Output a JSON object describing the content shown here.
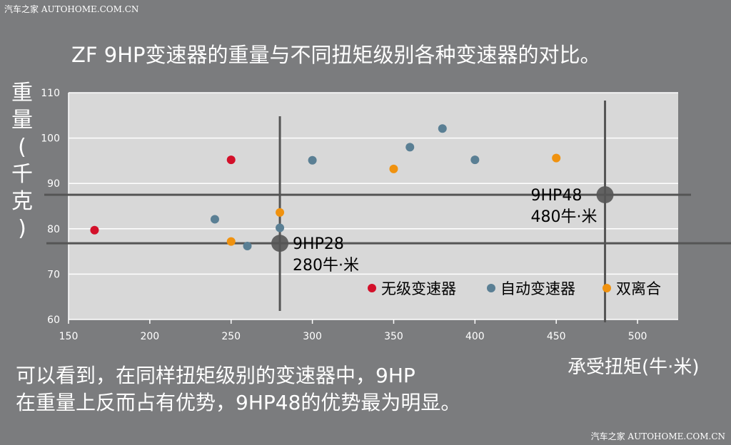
{
  "watermark_top": "汽车之家 AUTOHOME.COM.CN",
  "watermark_bottom": "汽车之家 AUTOHOME.COM.CN",
  "note_lines": [
    "可以看到，在同样扭矩级别的变速器中，9HP",
    "在重量上反而占有优势，9HP48的优势最为明显。"
  ],
  "colors": {
    "background": "#7b7c7e",
    "plot_bg": "#d8d8d8",
    "cvt": "#d3102a",
    "automatic": "#5a7f94",
    "dct": "#f0920f",
    "reference": "#555555"
  },
  "chart_data": {
    "type": "scatter",
    "title": "ZF 9HP变速器的重量与不同扭矩级别各种变速器的对比。",
    "xlabel": "承受扭矩(牛·米)",
    "ylabel_chars": [
      "重",
      "量",
      "(",
      "千",
      "克",
      ")"
    ],
    "xlim": [
      150,
      525
    ],
    "ylim": [
      60,
      110
    ],
    "x_ticks": [
      150,
      200,
      250,
      300,
      350,
      400,
      450,
      500
    ],
    "y_ticks": [
      60,
      70,
      80,
      90,
      100,
      110
    ],
    "grid": true,
    "legend_position": "bottom-right",
    "series": [
      {
        "name": "无级变速器",
        "color": "#d3102a",
        "points": [
          [
            166,
            79.7
          ],
          [
            250,
            95.2
          ]
        ]
      },
      {
        "name": "自动变速器",
        "color": "#5a7f94",
        "points": [
          [
            240,
            82.1
          ],
          [
            260,
            76.2
          ],
          [
            280,
            80.2
          ],
          [
            300,
            95.1
          ],
          [
            360,
            98.0
          ],
          [
            380,
            102.1
          ],
          [
            400,
            95.2
          ]
        ]
      },
      {
        "name": "双离合",
        "color": "#f0920f",
        "points": [
          [
            250,
            77.2
          ],
          [
            280,
            83.6
          ],
          [
            350,
            93.2
          ],
          [
            450,
            95.6
          ]
        ]
      }
    ],
    "highlights": [
      {
        "x": 280,
        "y": 76.8,
        "label_line1": "9HP28",
        "label_line2": "280牛·米"
      },
      {
        "x": 480,
        "y": 87.5,
        "label_line1": "9HP48",
        "label_line2": "480牛·米"
      }
    ]
  }
}
